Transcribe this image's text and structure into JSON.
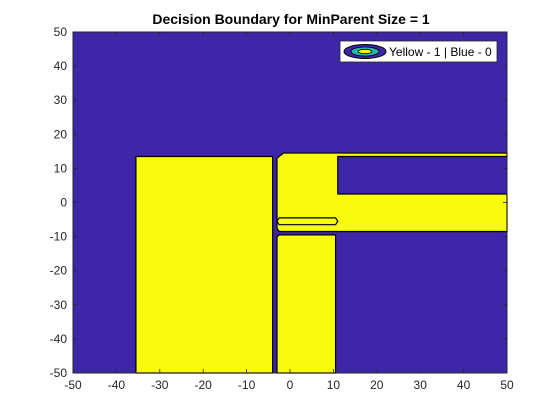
{
  "chart_data": {
    "type": "contour",
    "title": "Decision Boundary for MinParent Size = 1",
    "xlabel": "",
    "ylabel": "",
    "xlim": [
      -50,
      50
    ],
    "ylim": [
      -50,
      50
    ],
    "xticks": [
      -50,
      -40,
      -30,
      -20,
      -10,
      0,
      10,
      20,
      30,
      40,
      50
    ],
    "yticks": [
      -50,
      -40,
      -30,
      -20,
      -10,
      0,
      10,
      20,
      30,
      40,
      50
    ],
    "grid": false,
    "legend": {
      "entries": [
        "Yellow - 1 | Blue - 0"
      ],
      "location": "top-right"
    },
    "colors": {
      "class_0": "#3e26a8",
      "class_1": "#f9fb0e",
      "boundary": "#000000",
      "axes": "#262626"
    },
    "background_class": 0,
    "regions": [
      {
        "class": 1,
        "name": "left-block",
        "polygon": [
          [
            -35.5,
            13.5
          ],
          [
            -4,
            13.5
          ],
          [
            -4,
            -50
          ],
          [
            -35.5,
            -50
          ]
        ]
      },
      {
        "class": 1,
        "name": "upper-bar",
        "polygon": [
          [
            -3,
            13
          ],
          [
            -1.5,
            14.5
          ],
          [
            50,
            14.5
          ],
          [
            50,
            13.5
          ],
          [
            11,
            13.5
          ],
          [
            11,
            2.5
          ],
          [
            50,
            2.5
          ],
          [
            50,
            -8.5
          ],
          [
            -2.5,
            -8.5
          ],
          [
            -3,
            -7.5
          ]
        ]
      },
      {
        "class": 1,
        "name": "thin-strip",
        "polygon": [
          [
            -2.5,
            -4.5
          ],
          [
            10.5,
            -4.5
          ],
          [
            11,
            -5.5
          ],
          [
            10.5,
            -6.5
          ],
          [
            -2.5,
            -6.5
          ],
          [
            -3,
            -5.5
          ]
        ]
      },
      {
        "class": 1,
        "name": "bottom-block",
        "polygon": [
          [
            -2.5,
            -9.5
          ],
          [
            10.5,
            -9.5
          ],
          [
            10.5,
            -50
          ],
          [
            -3,
            -50
          ],
          [
            -3,
            -10
          ]
        ]
      }
    ]
  }
}
